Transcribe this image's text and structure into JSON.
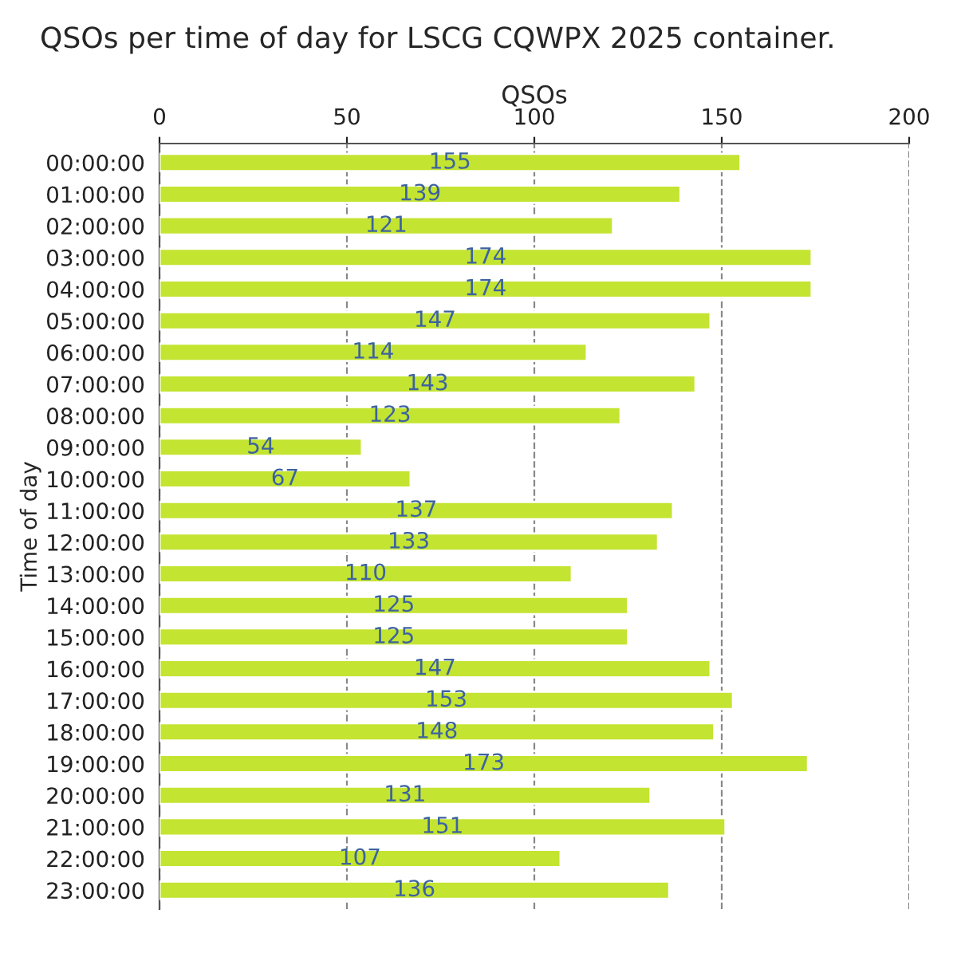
{
  "chart_data": {
    "type": "bar",
    "orientation": "horizontal",
    "title": "QSOs per time of day for LSCG CQWPX 2025 container.",
    "xlabel": "QSOs",
    "ylabel": "Time of day",
    "categories": [
      "00:00:00",
      "01:00:00",
      "02:00:00",
      "03:00:00",
      "04:00:00",
      "05:00:00",
      "06:00:00",
      "07:00:00",
      "08:00:00",
      "09:00:00",
      "10:00:00",
      "11:00:00",
      "12:00:00",
      "13:00:00",
      "14:00:00",
      "15:00:00",
      "16:00:00",
      "17:00:00",
      "18:00:00",
      "19:00:00",
      "20:00:00",
      "21:00:00",
      "22:00:00",
      "23:00:00"
    ],
    "values": [
      155,
      139,
      121,
      174,
      174,
      147,
      114,
      143,
      123,
      54,
      67,
      137,
      133,
      110,
      125,
      125,
      147,
      153,
      148,
      173,
      131,
      151,
      107,
      136
    ],
    "color": "#c3e431",
    "xlim": [
      0,
      200
    ],
    "xticks": [
      0,
      50,
      100,
      150,
      200
    ],
    "grid": "x",
    "data_labels": true,
    "legend": false
  }
}
